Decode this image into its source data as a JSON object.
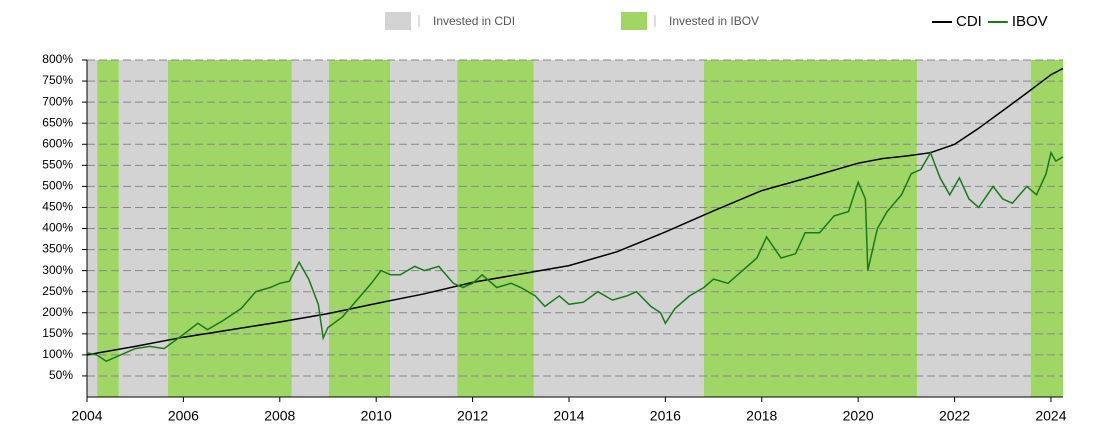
{
  "chart_data": {
    "type": "line",
    "regions": [
      {
        "name": "Invested in CDI",
        "color": "#d3d3d3",
        "spans": [
          [
            2004.0,
            2004.21
          ],
          [
            2004.66,
            2005.68
          ],
          [
            2008.25,
            2009.02
          ],
          [
            2010.29,
            2011.68
          ],
          [
            2013.27,
            2016.8
          ],
          [
            2021.22,
            2023.58
          ]
        ]
      },
      {
        "name": "Invested in IBOV",
        "color": "#9fd666",
        "spans": [
          [
            2004.21,
            2004.66
          ],
          [
            2005.68,
            2008.25
          ],
          [
            2009.02,
            2010.29
          ],
          [
            2011.68,
            2013.27
          ],
          [
            2016.8,
            2021.22
          ],
          [
            2023.58,
            2024.25
          ]
        ]
      }
    ],
    "series": [
      {
        "name": "CDI",
        "color": "#000000",
        "x": [
          2004.0,
          2005.0,
          2006.0,
          2007.0,
          2008.0,
          2009.0,
          2010.0,
          2011.0,
          2012.0,
          2013.0,
          2014.0,
          2015.0,
          2016.0,
          2017.0,
          2018.0,
          2019.0,
          2020.0,
          2020.5,
          2021.0,
          2021.5,
          2022.0,
          2022.5,
          2023.0,
          2023.5,
          2024.0,
          2024.25
        ],
        "values": [
          100,
          120,
          142,
          160,
          178,
          198,
          222,
          245,
          272,
          292,
          312,
          345,
          392,
          442,
          490,
          522,
          555,
          566,
          572,
          580,
          600,
          638,
          680,
          722,
          765,
          780
        ]
      },
      {
        "name": "IBOV",
        "color": "#1a7a1a",
        "x": [
          2004.0,
          2004.2,
          2004.4,
          2004.7,
          2005.0,
          2005.3,
          2005.6,
          2005.9,
          2006.3,
          2006.5,
          2006.8,
          2007.2,
          2007.5,
          2007.8,
          2008.0,
          2008.2,
          2008.4,
          2008.6,
          2008.8,
          2008.9,
          2009.0,
          2009.3,
          2009.6,
          2009.9,
          2010.1,
          2010.3,
          2010.5,
          2010.8,
          2011.0,
          2011.3,
          2011.6,
          2011.8,
          2012.0,
          2012.2,
          2012.5,
          2012.8,
          2013.0,
          2013.3,
          2013.5,
          2013.8,
          2014.0,
          2014.3,
          2014.6,
          2014.9,
          2015.2,
          2015.4,
          2015.7,
          2015.9,
          2016.0,
          2016.2,
          2016.5,
          2016.8,
          2017.0,
          2017.3,
          2017.5,
          2017.9,
          2018.1,
          2018.4,
          2018.7,
          2018.9,
          2019.2,
          2019.5,
          2019.8,
          2020.0,
          2020.15,
          2020.2,
          2020.4,
          2020.6,
          2020.9,
          2021.1,
          2021.3,
          2021.5,
          2021.7,
          2021.9,
          2022.1,
          2022.3,
          2022.5,
          2022.8,
          2023.0,
          2023.2,
          2023.5,
          2023.7,
          2023.9,
          2024.0,
          2024.1,
          2024.25
        ],
        "values": [
          105,
          100,
          85,
          100,
          115,
          120,
          115,
          140,
          175,
          160,
          180,
          210,
          250,
          260,
          270,
          275,
          320,
          280,
          220,
          140,
          165,
          190,
          230,
          270,
          300,
          290,
          290,
          310,
          300,
          310,
          270,
          260,
          270,
          290,
          260,
          270,
          260,
          240,
          215,
          240,
          220,
          225,
          250,
          230,
          240,
          250,
          215,
          200,
          175,
          210,
          240,
          260,
          280,
          270,
          290,
          330,
          380,
          330,
          340,
          390,
          390,
          430,
          440,
          510,
          470,
          300,
          400,
          440,
          480,
          530,
          540,
          580,
          520,
          480,
          520,
          470,
          450,
          500,
          470,
          460,
          500,
          480,
          530,
          580,
          560,
          570
        ]
      }
    ],
    "xlim": [
      2004,
      2024.25
    ],
    "xticks": [
      2004,
      2006,
      2008,
      2010,
      2012,
      2014,
      2016,
      2018,
      2020,
      2022,
      2024
    ],
    "ylim": [
      0,
      800
    ],
    "yticks": [
      {
        "value": 50,
        "label": "50%"
      },
      {
        "value": 100,
        "label": "100%"
      },
      {
        "value": 150,
        "label": "150%"
      },
      {
        "value": 200,
        "label": "200%"
      },
      {
        "value": 250,
        "label": "250%"
      },
      {
        "value": 300,
        "label": "300%"
      },
      {
        "value": 350,
        "label": "350%"
      },
      {
        "value": 400,
        "label": "400%"
      },
      {
        "value": 450,
        "label": "450%"
      },
      {
        "value": 500,
        "label": "500%"
      },
      {
        "value": 550,
        "label": "550%"
      },
      {
        "value": 600,
        "label": "600%"
      },
      {
        "value": 650,
        "label": "650%"
      },
      {
        "value": 700,
        "label": "700%"
      },
      {
        "value": 750,
        "label": "750%"
      },
      {
        "value": 800,
        "label": "800%"
      }
    ],
    "grid": true
  }
}
